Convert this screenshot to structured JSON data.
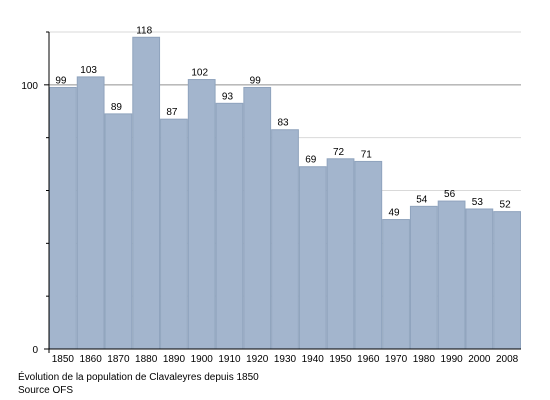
{
  "chart_data": {
    "type": "bar",
    "categories": [
      "1850",
      "1860",
      "1870",
      "1880",
      "1890",
      "1900",
      "1910",
      "1920",
      "1930",
      "1940",
      "1950",
      "1960",
      "1970",
      "1980",
      "1990",
      "2000",
      "2008"
    ],
    "values": [
      99,
      103,
      89,
      118,
      87,
      102,
      93,
      99,
      83,
      69,
      72,
      71,
      49,
      54,
      56,
      53,
      52
    ],
    "data_labels": [
      "99",
      "103",
      "89",
      "118",
      "87",
      "102",
      "93",
      "99",
      "83",
      "69",
      "72",
      "71",
      "49",
      "54",
      "56",
      "53",
      "52"
    ],
    "y_ticks": [
      0,
      100
    ],
    "y_tick_labels": [
      "0",
      "100"
    ],
    "ylim": [
      0,
      120
    ],
    "minor_gridlines": [
      20,
      40,
      60,
      80,
      100,
      120
    ],
    "grid": true,
    "legend": "none",
    "title": "",
    "xlabel": "",
    "ylabel": ""
  },
  "captions": {
    "line1": "Évolution de la population de Clavaleyres depuis 1850",
    "line2": "Source OFS"
  },
  "colors": {
    "bar_fill": "#a3b5cd",
    "bar_stroke": "#8fa3bd",
    "grid_major": "#909090",
    "grid_minor": "#d9d9d9",
    "axis": "#000000"
  }
}
